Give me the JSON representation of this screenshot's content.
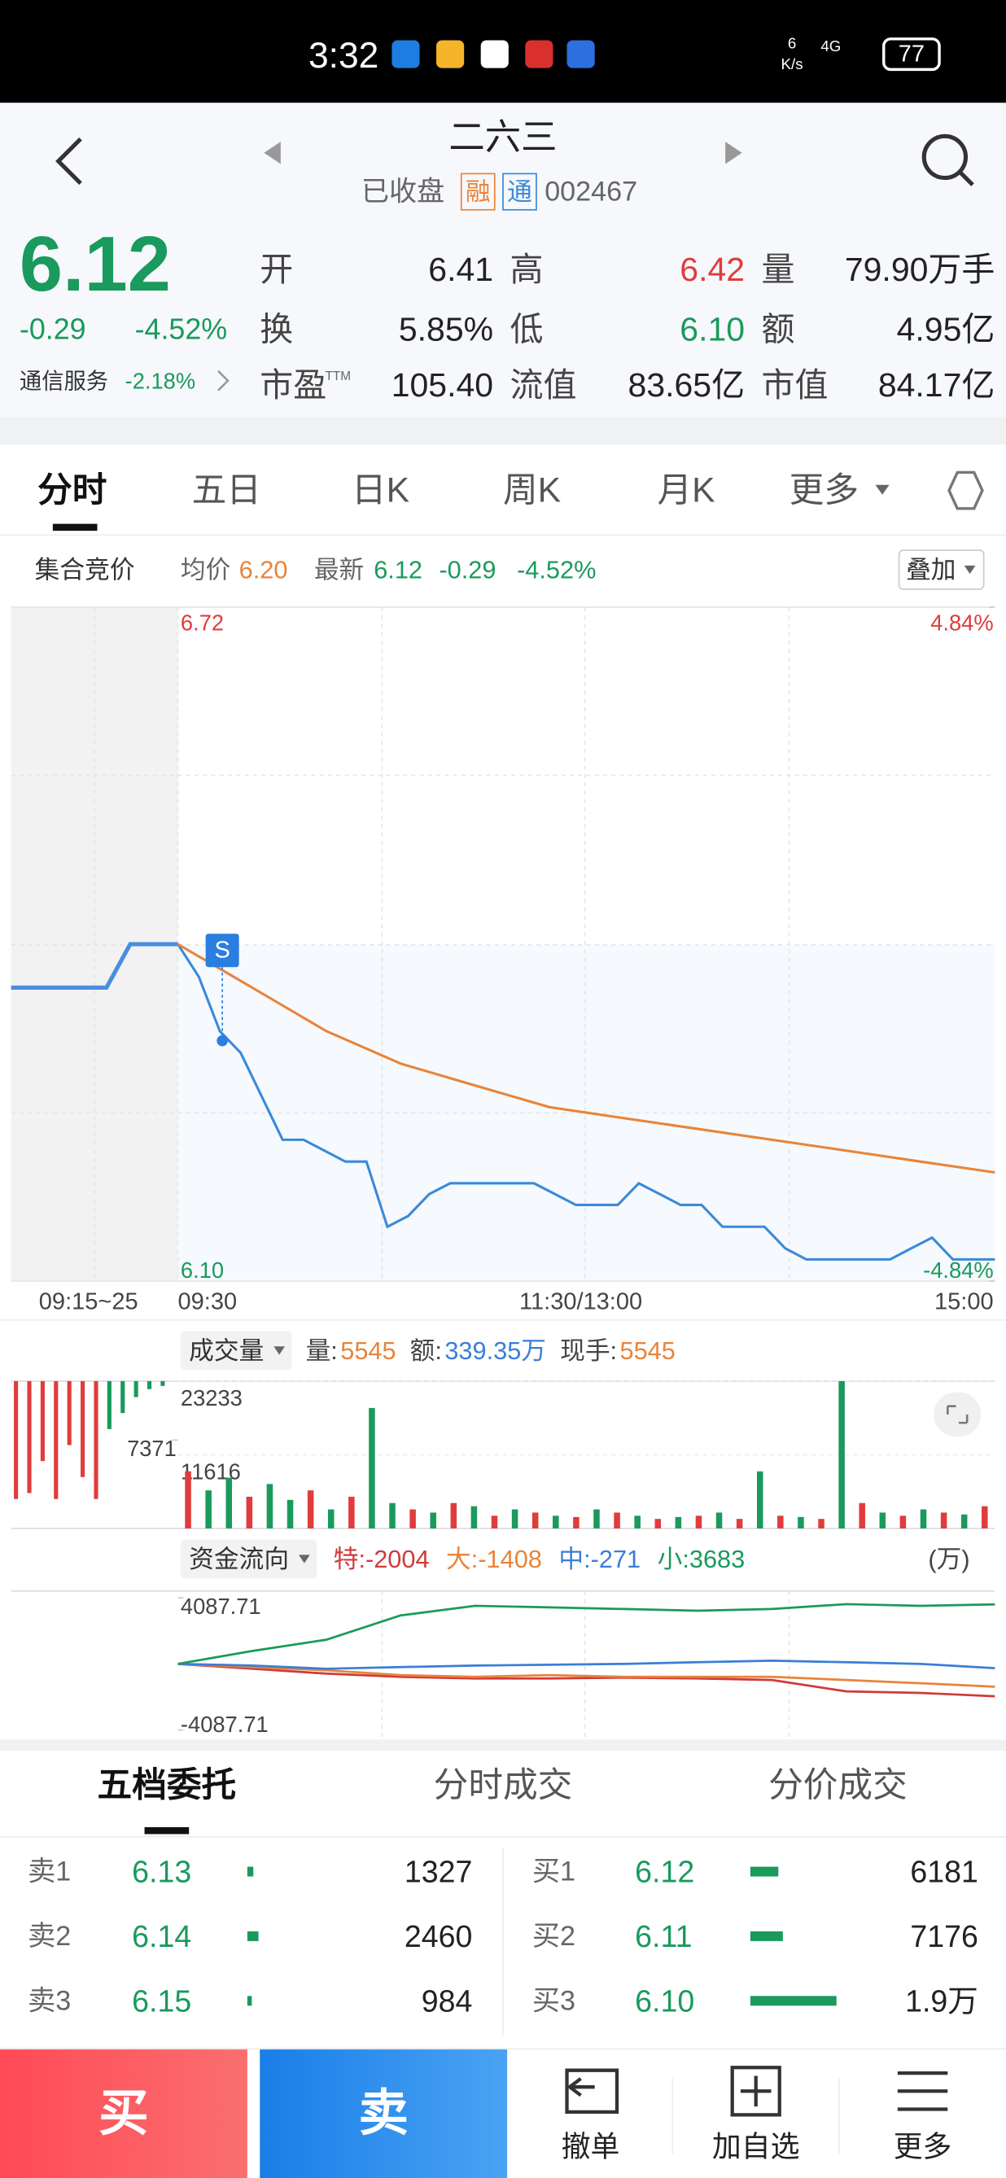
{
  "status_bar": {
    "time": "3:32",
    "net_speed": "6",
    "net_unit": "K/s",
    "signal": "4G",
    "battery": "77"
  },
  "header": {
    "title": "二六三",
    "status": "已收盘",
    "tags": [
      "融",
      "通"
    ],
    "code": "002467"
  },
  "quote": {
    "price": "6.12",
    "change": "-0.29",
    "change_pct": "-4.52%",
    "sector": "通信服务",
    "sector_change": "-2.18%",
    "stats": [
      [
        {
          "label": "开",
          "value": "6.41"
        },
        {
          "label": "高",
          "value": "6.42",
          "color": "#e03c3c"
        },
        {
          "label": "量",
          "value": "79.90万手"
        }
      ],
      [
        {
          "label": "换",
          "value": "5.85%"
        },
        {
          "label": "低",
          "value": "6.10",
          "color": "#1a9a5c"
        },
        {
          "label": "额",
          "value": "4.95亿"
        }
      ],
      [
        {
          "label": "市盈",
          "sup": "TTM",
          "value": "105.40"
        },
        {
          "label": "流值",
          "value": "83.65亿"
        },
        {
          "label": "市值",
          "value": "84.17亿"
        }
      ]
    ]
  },
  "tabs": [
    "分时",
    "五日",
    "日K",
    "周K",
    "月K",
    "更多"
  ],
  "info_bar": {
    "title": "集合竞价",
    "avg_label": "均价",
    "avg": "6.20",
    "last_label": "最新",
    "last": "6.12",
    "change": "-0.29",
    "change_pct": "-4.52%",
    "overlay": "叠加"
  },
  "chart_data": [
    {
      "type": "line",
      "x_labels": [
        "09:15~25",
        "09:30",
        "11:30/13:00",
        "15:00"
      ],
      "ylim": [
        6.1,
        6.72
      ],
      "yticks": [
        {
          "value": 6.72,
          "label": "6.72"
        },
        {
          "value": 6.1,
          "label": "6.10"
        }
      ],
      "y2lim": [
        -4.84,
        4.84
      ],
      "y2ticks": [
        {
          "value": 4.84,
          "label": "4.84%"
        },
        {
          "value": -4.84,
          "label": "-4.84%"
        }
      ],
      "marker": "S",
      "grid": true,
      "auction": {
        "color": "#4a8de0",
        "values": [
          6.37,
          6.37,
          6.37,
          6.37,
          6.37,
          6.41,
          6.41,
          6.41
        ]
      },
      "series": [
        {
          "color": "#3a8ad8",
          "values": [
            6.41,
            6.38,
            6.33,
            6.31,
            6.27,
            6.23,
            6.23,
            6.22,
            6.21,
            6.21,
            6.15,
            6.16,
            6.18,
            6.19,
            6.19,
            6.19,
            6.19,
            6.19,
            6.18,
            6.17,
            6.17,
            6.17,
            6.19,
            6.18,
            6.17,
            6.17,
            6.15,
            6.15,
            6.15,
            6.13,
            6.12,
            6.12,
            6.12,
            6.12,
            6.12,
            6.13,
            6.14,
            6.12,
            6.12,
            6.12
          ]
        },
        {
          "color": "#e8843a",
          "values": [
            6.41,
            6.37,
            6.33,
            6.3,
            6.28,
            6.26,
            6.25,
            6.24,
            6.23,
            6.22,
            6.21,
            6.2
          ]
        }
      ]
    },
    {
      "type": "bar",
      "title": "成交量",
      "stats": [
        {
          "label": "量:",
          "value": "5545",
          "color": "#e8843a"
        },
        {
          "label": "额:",
          "value": "339.35万",
          "color": "#3a7ed8"
        },
        {
          "label": "现手:",
          "value": "5545",
          "color": "#e8843a"
        }
      ],
      "ylim": [
        0,
        23233
      ],
      "yticks": [
        23233,
        11616
      ],
      "auction_ylim": [
        0,
        7371
      ],
      "auction_ticks": [
        7371
      ],
      "auction_values": [
        7371,
        7000,
        5000,
        7371,
        4000,
        6000,
        7371,
        3000,
        2000,
        1000,
        500,
        300
      ],
      "auction_colors": [
        "#e03c3c",
        "#e03c3c",
        "#e03c3c",
        "#e03c3c",
        "#e03c3c",
        "#e03c3c",
        "#e03c3c",
        "#1a9a5c",
        "#1a9a5c",
        "#1a9a5c",
        "#1a9a5c",
        "#1a9a5c"
      ],
      "values": [
        9000,
        6000,
        8000,
        5000,
        7000,
        4500,
        6000,
        3000,
        5000,
        19000,
        4000,
        3000,
        2500,
        4000,
        3500,
        2000,
        3000,
        2500,
        2000,
        1800,
        3000,
        2500,
        2000,
        1500,
        1800,
        2000,
        2500,
        1500,
        9000,
        2000,
        1800,
        1500,
        23233,
        4000,
        2500,
        2000,
        3000,
        2500,
        2200,
        3500
      ],
      "colors": [
        "#e03c3c",
        "#1a9a5c",
        "#1a9a5c",
        "#e03c3c",
        "#1a9a5c",
        "#1a9a5c",
        "#e03c3c",
        "#1a9a5c",
        "#e03c3c",
        "#1a9a5c",
        "#1a9a5c",
        "#e03c3c",
        "#1a9a5c",
        "#e03c3c",
        "#1a9a5c",
        "#e03c3c",
        "#1a9a5c",
        "#e03c3c",
        "#1a9a5c",
        "#e03c3c",
        "#1a9a5c",
        "#e03c3c",
        "#1a9a5c",
        "#e03c3c",
        "#1a9a5c",
        "#e03c3c",
        "#1a9a5c",
        "#e03c3c",
        "#1a9a5c",
        "#e03c3c",
        "#1a9a5c",
        "#e03c3c",
        "#1a9a5c",
        "#e03c3c",
        "#1a9a5c",
        "#e03c3c",
        "#1a9a5c",
        "#e03c3c",
        "#1a9a5c",
        "#e03c3c"
      ]
    },
    {
      "type": "line",
      "title": "资金流向",
      "unit": "(万)",
      "ylim": [
        -4087.71,
        4087.71
      ],
      "yticks": [
        4087.71,
        -4087.71
      ],
      "series": [
        {
          "name": "特:",
          "color": "#d03a3a",
          "values": [
            0,
            -300,
            -600,
            -800,
            -900,
            -900,
            -850,
            -900,
            -1000,
            -1700,
            -1800,
            -2004
          ]
        },
        {
          "name": "大:",
          "color": "#e8843a",
          "values": [
            0,
            -200,
            -400,
            -700,
            -800,
            -700,
            -800,
            -800,
            -800,
            -1000,
            -1200,
            -1408
          ]
        },
        {
          "name": "中:",
          "color": "#3a7ed8",
          "values": [
            0,
            -100,
            -300,
            -200,
            -100,
            -50,
            0,
            100,
            200,
            100,
            0,
            -271
          ]
        },
        {
          "name": "小:",
          "color": "#1a9a5c",
          "values": [
            0,
            800,
            1500,
            3000,
            3600,
            3500,
            3400,
            3300,
            3400,
            3700,
            3600,
            3683
          ]
        }
      ]
    }
  ],
  "order_book": {
    "tabs": [
      "五档委托",
      "分时成交",
      "分价成交"
    ],
    "sell": [
      {
        "label": "卖1",
        "price": "6.13",
        "volume": 1327
      },
      {
        "label": "卖2",
        "price": "6.14",
        "volume": 2460
      },
      {
        "label": "卖3",
        "price": "6.15",
        "volume": 984
      }
    ],
    "buy": [
      {
        "label": "买1",
        "price": "6.12",
        "volume": 6181
      },
      {
        "label": "买2",
        "price": "6.11",
        "volume": 7176
      },
      {
        "label": "买3",
        "price": "6.10",
        "volume": 19000,
        "volume_label": "1.9万"
      }
    ]
  },
  "actions": {
    "buy": "买",
    "sell": "卖",
    "cancel": "撤单",
    "watch": "加自选",
    "more": "更多"
  }
}
